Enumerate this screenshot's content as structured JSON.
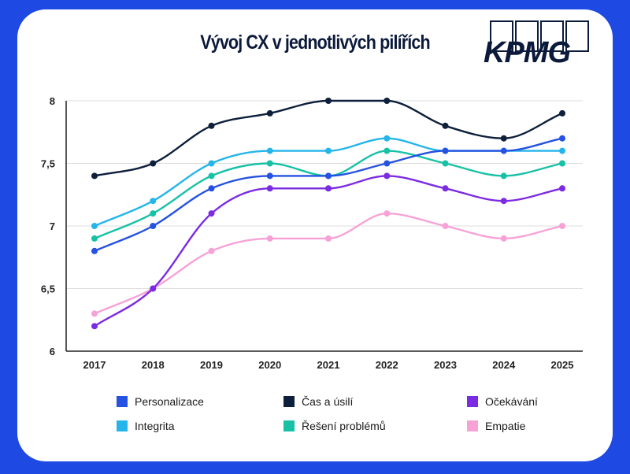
{
  "chart_data": {
    "type": "line",
    "title": "Vývoj CX v jednotlivých pilířích",
    "categories": [
      "2017",
      "2018",
      "2019",
      "2020",
      "2021",
      "2022",
      "2023",
      "2024",
      "2025"
    ],
    "y_ticks": [
      "6",
      "6,5",
      "7",
      "7,5",
      "8"
    ],
    "ylim": [
      6,
      8
    ],
    "grid": true,
    "series": [
      {
        "name": "Personalizace",
        "color": "#2552e0",
        "values": [
          6.8,
          7.0,
          7.3,
          7.4,
          7.4,
          7.5,
          7.6,
          7.6,
          7.7
        ]
      },
      {
        "name": "Čas a úsilí",
        "color": "#0d1f3b",
        "values": [
          7.4,
          7.5,
          7.8,
          7.9,
          8.0,
          8.0,
          7.8,
          7.7,
          7.9
        ]
      },
      {
        "name": "Očekávání",
        "color": "#7b2be2",
        "values": [
          6.2,
          6.5,
          7.1,
          7.3,
          7.3,
          7.4,
          7.3,
          7.2,
          7.3
        ]
      },
      {
        "name": "Integrita",
        "color": "#25b5ea",
        "values": [
          7.0,
          7.2,
          7.5,
          7.6,
          7.6,
          7.7,
          7.6,
          7.6,
          7.6
        ]
      },
      {
        "name": "Řešení problémů",
        "color": "#17c1a6",
        "values": [
          6.9,
          7.1,
          7.4,
          7.5,
          7.4,
          7.6,
          7.5,
          7.4,
          7.5
        ]
      },
      {
        "name": "Empatie",
        "color": "#f7a2d6",
        "values": [
          6.3,
          6.5,
          6.8,
          6.9,
          6.9,
          7.1,
          7.0,
          6.9,
          7.0
        ]
      }
    ]
  },
  "logo": {
    "text": "KPMG"
  }
}
